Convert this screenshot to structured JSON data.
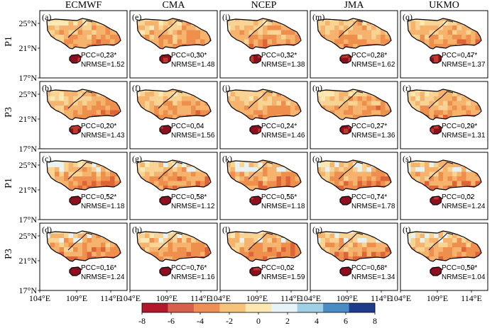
{
  "models": [
    "ECMWF",
    "CMA",
    "NCEP",
    "JMA",
    "UKMO"
  ],
  "rows": [
    "P1",
    "P3",
    "P1",
    "P3"
  ],
  "lat_ticks": [
    "25°N",
    "21°N",
    "17°N"
  ],
  "lon_ticks": [
    "104°E",
    "109°E",
    "114°E"
  ],
  "panels": [
    [
      {
        "id": "(a)",
        "pcc": "PCC=0.23*",
        "nrmse": "NRMSE=1.52"
      },
      {
        "id": "(e)",
        "pcc": "PCC=0.30*",
        "nrmse": "NRMSE=1.48"
      },
      {
        "id": "(i)",
        "pcc": "PCC=0.32*",
        "nrmse": "NRMSE=1.38"
      },
      {
        "id": "(m)",
        "pcc": "PCC=0.28*",
        "nrmse": "NRMSE=1.62"
      },
      {
        "id": "(q)",
        "pcc": "PCC=0.47*",
        "nrmse": "NRMSE=1.37"
      }
    ],
    [
      {
        "id": "(b)",
        "pcc": "PCC=0.20*",
        "nrmse": "NRMSE=1.43"
      },
      {
        "id": "(f)",
        "pcc": "PCC=0.04",
        "nrmse": "NRMSE=1.56"
      },
      {
        "id": "(j)",
        "pcc": "PCC=0.24*",
        "nrmse": "NRMSE=1.46"
      },
      {
        "id": "(n)",
        "pcc": "PCC=0.27*",
        "nrmse": "NRMSE=1.36"
      },
      {
        "id": "(r)",
        "pcc": "PCC=0.29*",
        "nrmse": "NRMSE=1.31"
      }
    ],
    [
      {
        "id": "(c)",
        "pcc": "PCC=0.52*",
        "nrmse": "NRMSE=1.18"
      },
      {
        "id": "(g)",
        "pcc": "PCC=0.58*",
        "nrmse": "NRMSE=1.12"
      },
      {
        "id": "(k)",
        "pcc": "PCC=0.55*",
        "nrmse": "NRMSE=1.18"
      },
      {
        "id": "(o)",
        "pcc": "PCC=0.74*",
        "nrmse": "NRMSE=1.78"
      },
      {
        "id": "(s)",
        "pcc": "PCC=0.02",
        "nrmse": "NRMSE=1.24"
      }
    ],
    [
      {
        "id": "(d)",
        "pcc": "PCC=0.16*",
        "nrmse": "NRMSE=1.24"
      },
      {
        "id": "(h)",
        "pcc": "PCC=0.76*",
        "nrmse": "NRMSE=1.16"
      },
      {
        "id": "(l)",
        "pcc": "PCC=0.02",
        "nrmse": "NRMSE=1.59"
      },
      {
        "id": "(p)",
        "pcc": "PCC=0.68*",
        "nrmse": "NRMSE=1.34"
      },
      {
        "id": "(t)",
        "pcc": "PCC=0.59*",
        "nrmse": "NRMSE=1.04"
      }
    ]
  ],
  "colorbar": {
    "ticks": [
      "-8",
      "-6",
      "-4",
      "-2",
      "0",
      "2",
      "4",
      "6",
      "8"
    ],
    "colors": [
      "#b2182b",
      "#d6604d",
      "#ee8f55",
      "#f7c27a",
      "#fde9b0",
      "#e6f3f7",
      "#9fd0e6",
      "#4a8cc4",
      "#1f3c8c"
    ],
    "palette": [
      "#fbe8b3",
      "#f9d394",
      "#f5b36d",
      "#ee8f4d",
      "#dd6437",
      "#c0392b",
      "#8e1020",
      "#e6f3f2"
    ]
  }
}
